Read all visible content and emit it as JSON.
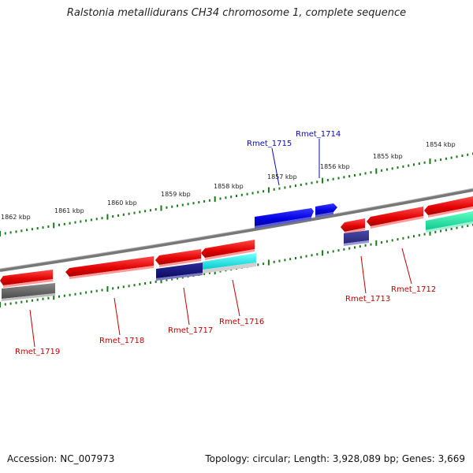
{
  "title": "Ralstonia metallidurans CH34 chromosome 1, complete sequence",
  "footer": {
    "accession": "Accession: NC_007973",
    "summary": "Topology: circular; Length: 3,928,089 bp; Genes: 3,669"
  },
  "colors": {
    "backbone": "#808080",
    "tick": "#1a7a1a",
    "label_forward": "#0a0ab4",
    "label_reverse": "#c00000"
  },
  "ruler": {
    "labels": [
      "1862 kbp",
      "1861 kbp",
      "1860 kbp",
      "1859 kbp",
      "1858 kbp",
      "1857 kbp",
      "1856 kbp",
      "1855 kbp",
      "1854 kbp"
    ]
  },
  "genes": [
    {
      "label": "Rmet_1715",
      "strand": "forward"
    },
    {
      "label": "Rmet_1714",
      "strand": "forward"
    },
    {
      "label": "Rmet_1719",
      "strand": "reverse"
    },
    {
      "label": "Rmet_1718",
      "strand": "reverse"
    },
    {
      "label": "Rmet_1717",
      "strand": "reverse"
    },
    {
      "label": "Rmet_1716",
      "strand": "reverse"
    },
    {
      "label": "Rmet_1713",
      "strand": "reverse"
    },
    {
      "label": "Rmet_1712",
      "strand": "reverse"
    }
  ]
}
